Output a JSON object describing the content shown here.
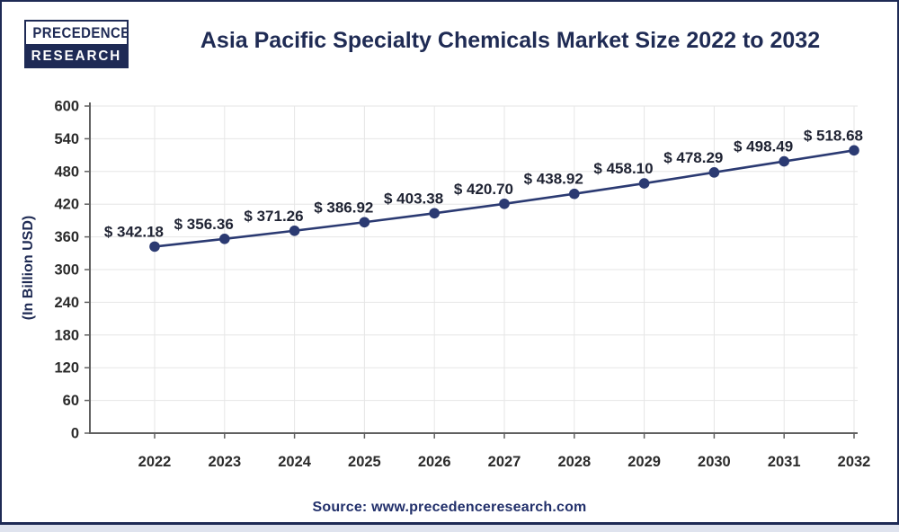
{
  "brand": {
    "line1": "PRECEDENCE",
    "line2": "RESEARCH"
  },
  "title": "Asia Pacific Specialty Chemicals Market Size 2022 to 2032",
  "source": "Source: www.precedenceresearch.com",
  "colors": {
    "border_navy": "#1E2A55",
    "title_navy": "#1F2B54",
    "line_navy": "#2B3A72",
    "data_label": "#1F2333",
    "tick_label": "#2B2B2B",
    "axis_gray": "#606060",
    "grid_gray": "#E6E6E6",
    "source_navy": "#22306B",
    "outer_strip": "#DFE3EE",
    "background": "#FFFFFF"
  },
  "chart_data": {
    "type": "line",
    "title": "Asia Pacific Specialty Chemicals Market Size 2022 to 2032",
    "categories": [
      "2022",
      "2023",
      "2024",
      "2025",
      "2026",
      "2027",
      "2028",
      "2029",
      "2030",
      "2031",
      "2032"
    ],
    "values": [
      342.18,
      356.36,
      371.26,
      386.92,
      403.38,
      420.7,
      438.92,
      458.1,
      478.29,
      498.49,
      518.68
    ],
    "data_label_prefix": "$ ",
    "xlabel": "",
    "ylabel": "(In Billion USD)",
    "ylim": [
      0,
      600
    ],
    "ytick_step": 60,
    "grid": true,
    "legend": "none",
    "marker": "circle"
  }
}
